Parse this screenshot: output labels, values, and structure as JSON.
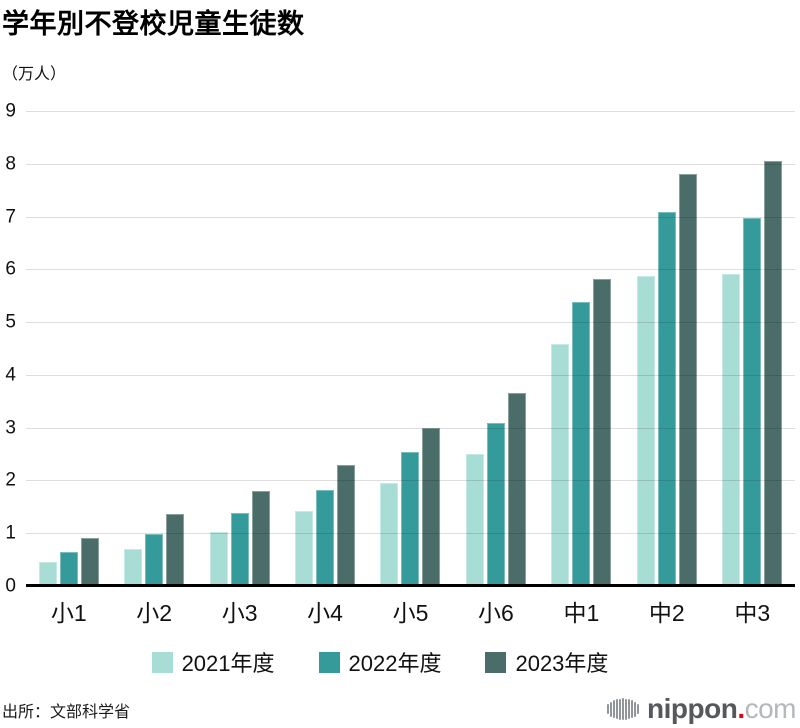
{
  "title": "学年別不登校児童生徒数",
  "unit_label": "（万人）",
  "source": "出所：文部科学省",
  "logo": {
    "name": "nippon",
    "dot": ".",
    "tld": "com",
    "dot_color": "#e60012",
    "mark": "soundwave-sphere-icon"
  },
  "chart_data": {
    "type": "bar",
    "title": "学年別不登校児童生徒数",
    "ylabel": "（万人）",
    "xlabel": "",
    "ylim": [
      0,
      9
    ],
    "yticks": [
      0,
      1,
      2,
      3,
      4,
      5,
      6,
      7,
      8,
      9
    ],
    "grid": true,
    "legend_position": "bottom",
    "categories": [
      "小1",
      "小2",
      "小3",
      "小4",
      "小5",
      "小6",
      "中1",
      "中2",
      "中3"
    ],
    "series": [
      {
        "name": "2021年度",
        "color": "#a7ddd5",
        "values": [
          0.45,
          0.71,
          1.03,
          1.43,
          1.96,
          2.5,
          4.58,
          5.88,
          5.91
        ]
      },
      {
        "name": "2022年度",
        "color": "#359a9a",
        "values": [
          0.64,
          0.99,
          1.39,
          1.82,
          2.53,
          3.08,
          5.39,
          7.08,
          6.97
        ]
      },
      {
        "name": "2023年度",
        "color": "#4a6d69",
        "values": [
          0.91,
          1.37,
          1.8,
          2.29,
          3.0,
          3.65,
          5.81,
          7.8,
          8.05
        ]
      }
    ]
  }
}
